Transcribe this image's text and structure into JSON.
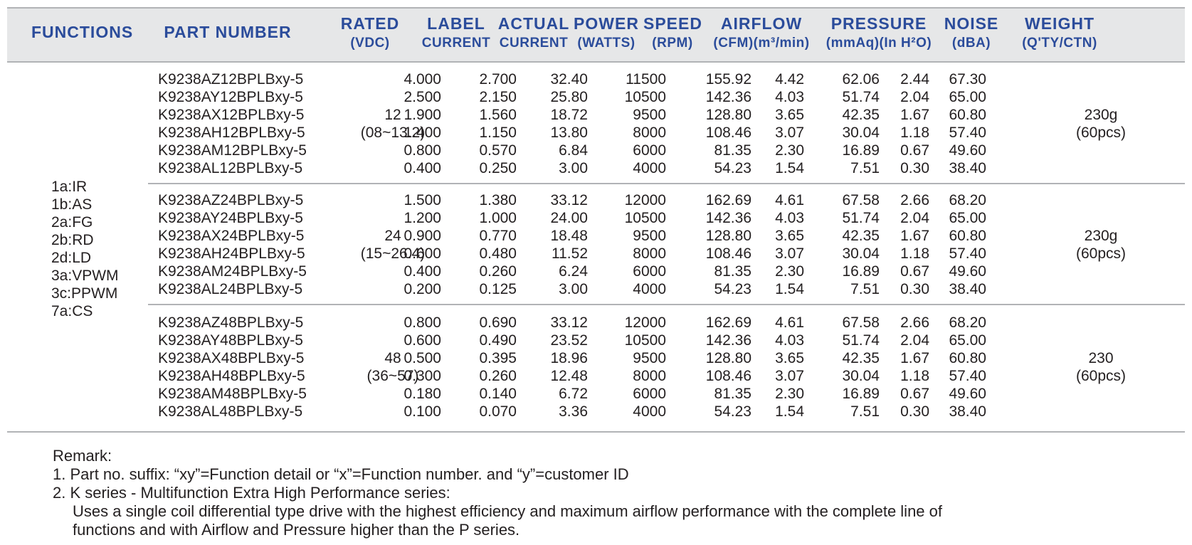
{
  "header": {
    "functions": "FUNCTIONS",
    "part_number": "PART NUMBER",
    "rated": [
      "RATED",
      "(VDC)"
    ],
    "label_current": [
      "LABEL",
      "CURRENT"
    ],
    "actual_current": [
      "ACTUAL",
      "CURRENT"
    ],
    "power": [
      "POWER",
      "(WATTS)"
    ],
    "speed": [
      "SPEED",
      "(RPM)"
    ],
    "airflow": [
      "AIRFLOW",
      "(CFM)(m³/min)"
    ],
    "pressure": [
      "PRESSURE",
      "(mmAq)(In H²O)"
    ],
    "noise": [
      "NOISE",
      "(dBA)"
    ],
    "weight": [
      "WEIGHT",
      "(Q'TY/CTN)"
    ]
  },
  "functions": [
    "1a:IR",
    "1b:AS",
    "2a:FG",
    "2b:RD",
    "2d:LD",
    "3a:VPWM",
    "3c:PPWM",
    "7a:CS"
  ],
  "groups": [
    {
      "rated": "12",
      "rated_range": "(08~13.2)",
      "weight": "230g",
      "weight_qty": "(60pcs)",
      "rows": [
        [
          "K9238AZ12BPLBxy-5",
          "4.000",
          "2.700",
          "32.40",
          "11500",
          "155.92",
          "4.42",
          "62.06",
          "2.44",
          "67.30"
        ],
        [
          "K9238AY12BPLBxy-5",
          "2.500",
          "2.150",
          "25.80",
          "10500",
          "142.36",
          "4.03",
          "51.74",
          "2.04",
          "65.00"
        ],
        [
          "K9238AX12BPLBxy-5",
          "1.900",
          "1.560",
          "18.72",
          "9500",
          "128.80",
          "3.65",
          "42.35",
          "1.67",
          "60.80"
        ],
        [
          "K9238AH12BPLBxy-5",
          "1.400",
          "1.150",
          "13.80",
          "8000",
          "108.46",
          "3.07",
          "30.04",
          "1.18",
          "57.40"
        ],
        [
          "K9238AM12BPLBxy-5",
          "0.800",
          "0.570",
          "6.84",
          "6000",
          "81.35",
          "2.30",
          "16.89",
          "0.67",
          "49.60"
        ],
        [
          "K9238AL12BPLBxy-5",
          "0.400",
          "0.250",
          "3.00",
          "4000",
          "54.23",
          "1.54",
          "7.51",
          "0.30",
          "38.40"
        ]
      ]
    },
    {
      "rated": "24",
      "rated_range": "(15~26.4)",
      "weight": "230g",
      "weight_qty": "(60pcs)",
      "rows": [
        [
          "K9238AZ24BPLBxy-5",
          "1.500",
          "1.380",
          "33.12",
          "12000",
          "162.69",
          "4.61",
          "67.58",
          "2.66",
          "68.20"
        ],
        [
          "K9238AY24BPLBxy-5",
          "1.200",
          "1.000",
          "24.00",
          "10500",
          "142.36",
          "4.03",
          "51.74",
          "2.04",
          "65.00"
        ],
        [
          "K9238AX24BPLBxy-5",
          "0.900",
          "0.770",
          "18.48",
          "9500",
          "128.80",
          "3.65",
          "42.35",
          "1.67",
          "60.80"
        ],
        [
          "K9238AH24BPLBxy-5",
          "0.600",
          "0.480",
          "11.52",
          "8000",
          "108.46",
          "3.07",
          "30.04",
          "1.18",
          "57.40"
        ],
        [
          "K9238AM24BPLBxy-5",
          "0.400",
          "0.260",
          "6.24",
          "6000",
          "81.35",
          "2.30",
          "16.89",
          "0.67",
          "49.60"
        ],
        [
          "K9238AL24BPLBxy-5",
          "0.200",
          "0.125",
          "3.00",
          "4000",
          "54.23",
          "1.54",
          "7.51",
          "0.30",
          "38.40"
        ]
      ]
    },
    {
      "rated": "48",
      "rated_range": "(36~57)",
      "weight": "230",
      "weight_qty": "(60pcs)",
      "rows": [
        [
          "K9238AZ48BPLBxy-5",
          "0.800",
          "0.690",
          "33.12",
          "12000",
          "162.69",
          "4.61",
          "67.58",
          "2.66",
          "68.20"
        ],
        [
          "K9238AY48BPLBxy-5",
          "0.600",
          "0.490",
          "23.52",
          "10500",
          "142.36",
          "4.03",
          "51.74",
          "2.04",
          "65.00"
        ],
        [
          "K9238AX48BPLBxy-5",
          "0.500",
          "0.395",
          "18.96",
          "9500",
          "128.80",
          "3.65",
          "42.35",
          "1.67",
          "60.80"
        ],
        [
          "K9238AH48BPLBxy-5",
          "0.300",
          "0.260",
          "12.48",
          "8000",
          "108.46",
          "3.07",
          "30.04",
          "1.18",
          "57.40"
        ],
        [
          "K9238AM48BPLBxy-5",
          "0.180",
          "0.140",
          "6.72",
          "6000",
          "81.35",
          "2.30",
          "16.89",
          "0.67",
          "49.60"
        ],
        [
          "K9238AL48BPLBxy-5",
          "0.100",
          "0.070",
          "3.36",
          "4000",
          "54.23",
          "1.54",
          "7.51",
          "0.30",
          "38.40"
        ]
      ]
    }
  ],
  "remarks": {
    "title": "Remark:",
    "line1": "1. Part no. suffix: “xy”=Function detail or “x”=Function number. and “y”=customer ID",
    "line2": "2. K series - Multifunction Extra High Performance series:",
    "line3": "Uses a single coil differential type drive with the highest efficiency and maximum airflow performance with the complete line of",
    "line4": "functions and with Airflow and Pressure higher than the P series."
  }
}
